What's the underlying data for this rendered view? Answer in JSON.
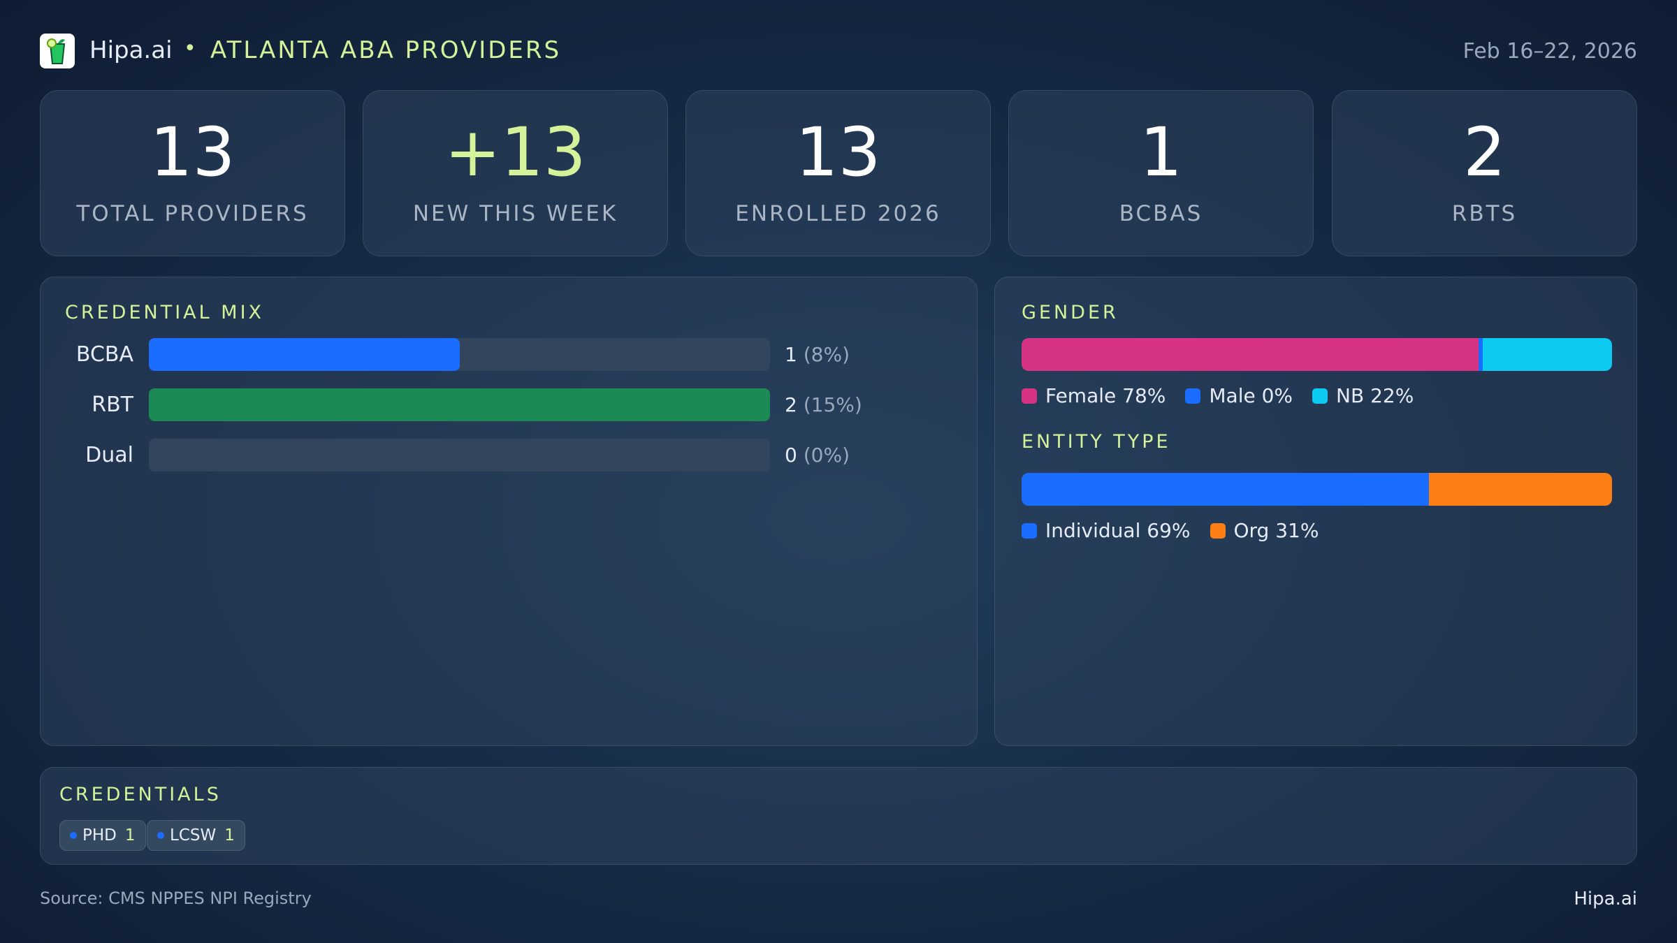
{
  "header": {
    "brand": "Hipa.ai",
    "separator": "•",
    "title": "ATLANTA ABA PROVIDERS",
    "date_range": "Feb 16–22, 2026",
    "logo_icon": "mojito-glass-icon"
  },
  "kpis": [
    {
      "value": "13",
      "label": "TOTAL PROVIDERS"
    },
    {
      "value": "+13",
      "label": "NEW THIS WEEK"
    },
    {
      "value": "13",
      "label": "ENROLLED 2026"
    },
    {
      "value": "1",
      "label": "BCBAS"
    },
    {
      "value": "2",
      "label": "RBTS"
    }
  ],
  "credential_mix": {
    "title": "CREDENTIAL MIX",
    "rows": [
      {
        "label": "BCBA",
        "count": "1",
        "pct": "(8%)",
        "fill": 0.5,
        "color": "#1a6dff"
      },
      {
        "label": "RBT",
        "count": "2",
        "pct": "(15%)",
        "fill": 1.0,
        "color": "#1b8a55"
      },
      {
        "label": "Dual",
        "count": "0",
        "pct": "(0%)",
        "fill": 0,
        "color": "#1a6dff"
      }
    ]
  },
  "gender": {
    "title": "GENDER",
    "segments": [
      {
        "label": "Female 78%",
        "value": 78,
        "color": "#d63384"
      },
      {
        "label": "Male 0%",
        "value": 0,
        "color": "#1a6dff"
      },
      {
        "label": "NB 22%",
        "value": 22,
        "color": "#0dcaf0"
      }
    ]
  },
  "entity_type": {
    "title": "ENTITY TYPE",
    "segments": [
      {
        "label": "Individual 69%",
        "value": 69,
        "color": "#1a6dff"
      },
      {
        "label": "Org 31%",
        "value": 31,
        "color": "#fd7e14"
      }
    ]
  },
  "credentials": {
    "title": "CREDENTIALS",
    "chips": [
      {
        "label": "PHD",
        "count": "1"
      },
      {
        "label": "LCSW",
        "count": "1"
      }
    ]
  },
  "footer": {
    "source": "Source: CMS NPPES NPI Registry",
    "brand": "Hipa.ai"
  }
}
